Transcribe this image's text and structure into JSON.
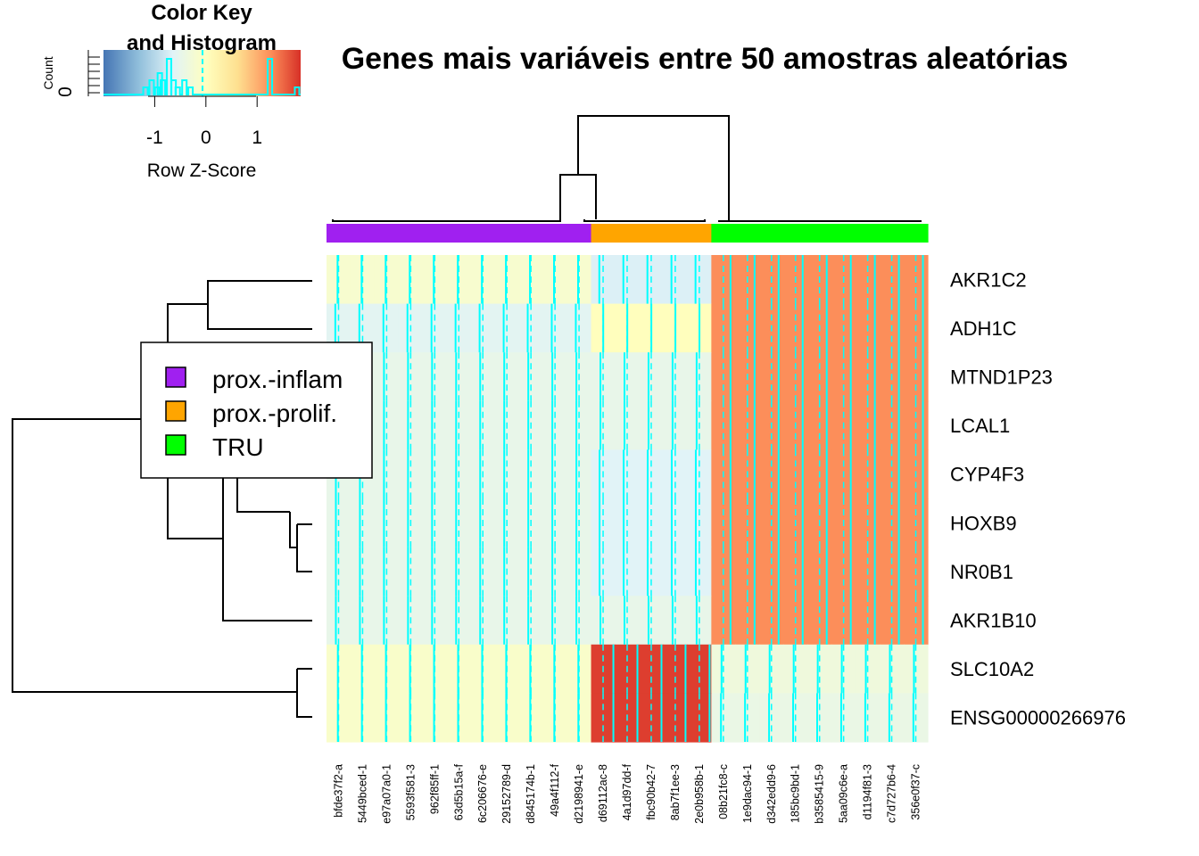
{
  "chart_data": {
    "type": "heatmap",
    "title": "Genes mais variáveis entre 50 amostras aleatórias",
    "color_key": {
      "title_line1": "Color Key",
      "title_line2": "and Histogram",
      "xlabel": "Row Z-Score",
      "ylabel": "Count",
      "y_tick": "0",
      "x_ticks": [
        "-1",
        "0",
        "1"
      ],
      "x_tick_values": [
        -1,
        0,
        1
      ],
      "range": [
        -2.0,
        1.85
      ],
      "colors": [
        "#4575b4",
        "#91bfdb",
        "#e0f3f8",
        "#ffffbf",
        "#fee090",
        "#fc8d59",
        "#d73027"
      ],
      "trace_color": "#00ffff",
      "histogram_bins": [
        {
          "x": -1.18,
          "count": 1
        },
        {
          "x": -1.06,
          "count": 2
        },
        {
          "x": -0.95,
          "count": 1
        },
        {
          "x": -0.9,
          "count": 3
        },
        {
          "x": -0.84,
          "count": 2
        },
        {
          "x": -0.72,
          "count": 5
        },
        {
          "x": -0.63,
          "count": 2
        },
        {
          "x": -0.55,
          "count": 1
        },
        {
          "x": -0.42,
          "count": 2
        },
        {
          "x": -0.3,
          "count": 1
        },
        {
          "x": 1.25,
          "count": 5
        },
        {
          "x": 1.78,
          "count": 1
        }
      ]
    },
    "groups": [
      {
        "name": "prox.-inflam",
        "color": "#a020f0"
      },
      {
        "name": "prox.-prolif.",
        "color": "#ffa500"
      },
      {
        "name": "TRU",
        "color": "#00ff00"
      }
    ],
    "rows": [
      "AKR1C2",
      "ADH1C",
      "MTND1P23",
      "LCAL1",
      "CYP4F3",
      "HOXB9",
      "NR0B1",
      "AKR1B10",
      "SLC10A2",
      "ENSG00000266976"
    ],
    "columns": [
      "bfde37f2-a",
      "5449bced-1",
      "e97a07a0-1",
      "5593f581-3",
      "962f85ff-1",
      "63d5b15a-f",
      "6c206676-e",
      "29152789-d",
      "d845174b-1",
      "49a4f112-f",
      "d2198941-e",
      "d69112ac-8",
      "4a1d97dd-f",
      "fbc90b42-7",
      "8ab7f1ee-3",
      "2e0b958b-1",
      "08b21fc8-c",
      "1e9dac94-1",
      "d342edd9-6",
      "185bc9bd-1",
      "b3585415-9",
      "5aa09c6e-a",
      "d1194f81-3",
      "c7d727b6-4",
      "356e0f37-c"
    ],
    "column_groups": [
      0,
      0,
      0,
      0,
      0,
      0,
      0,
      0,
      0,
      0,
      0,
      1,
      1,
      1,
      1,
      1,
      2,
      2,
      2,
      2,
      2,
      2,
      2,
      2,
      2
    ],
    "group_values": [
      [
        -0.25,
        -0.75,
        1.2
      ],
      [
        -0.65,
        -0.05,
        1.2
      ],
      [
        -0.55,
        -0.55,
        1.2
      ],
      [
        -0.55,
        -0.55,
        1.2
      ],
      [
        -0.55,
        -0.7,
        1.2
      ],
      [
        -0.55,
        -0.7,
        1.2
      ],
      [
        -0.55,
        -0.7,
        1.2
      ],
      [
        -0.55,
        -0.55,
        1.2
      ],
      [
        -0.2,
        1.75,
        -0.4
      ],
      [
        -0.2,
        1.75,
        -0.5
      ]
    ]
  }
}
